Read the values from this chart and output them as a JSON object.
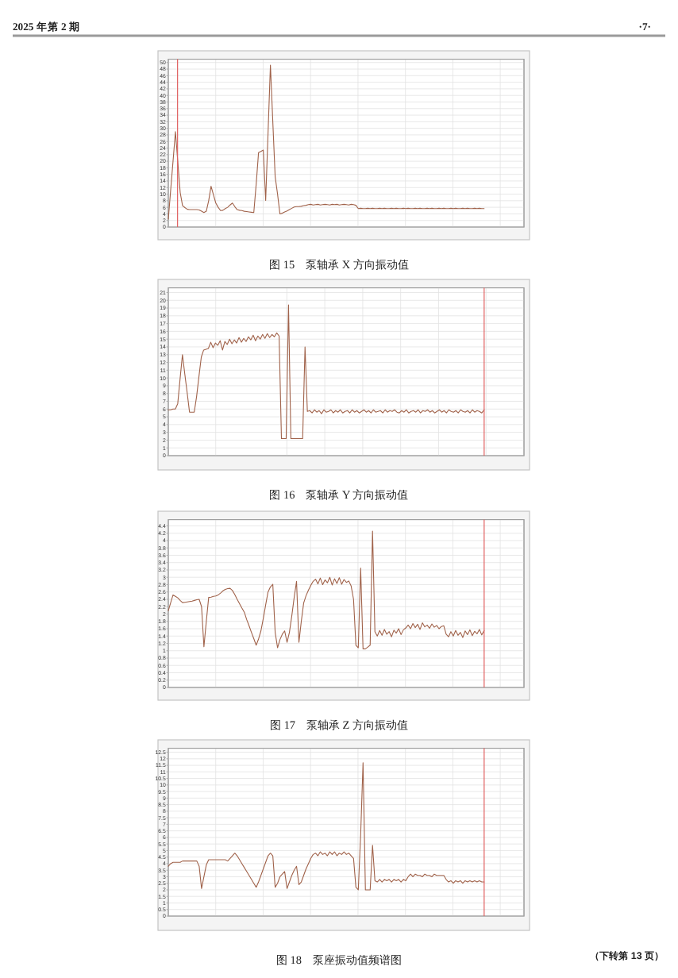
{
  "chart_data": [
    {
      "type": "line",
      "title": "图 15　泵轴承 X 方向振动值",
      "annotations": [
        "2025 年第 2 期",
        "·7·"
      ],
      "color": "#a0624a",
      "grid": true,
      "ylim": [
        0,
        51
      ],
      "yticks": [
        0,
        2,
        4,
        6,
        8,
        10,
        12,
        14,
        16,
        18,
        20,
        22,
        24,
        26,
        28,
        30,
        32,
        34,
        36,
        38,
        40,
        42,
        44,
        46,
        48,
        50
      ],
      "categories": [
        null,
        null,
        null,
        null,
        null,
        null,
        null,
        null,
        null,
        null,
        null,
        null,
        null,
        null,
        null,
        null,
        null,
        null,
        null,
        null,
        null,
        null,
        null,
        null,
        null,
        null,
        null,
        null,
        null,
        null,
        null,
        null,
        null,
        null,
        null,
        null,
        null,
        null,
        null,
        null,
        null,
        null,
        null,
        null,
        null,
        null,
        null,
        null,
        null,
        null,
        null,
        null,
        null,
        null,
        null,
        null,
        null,
        null,
        null,
        null,
        null,
        null,
        null,
        null,
        null,
        null,
        null,
        null,
        null,
        null,
        null,
        null,
        null,
        null,
        null,
        null,
        null,
        null,
        null,
        null,
        null,
        null,
        null,
        null,
        null,
        null,
        null,
        null,
        null,
        null,
        null,
        null,
        null,
        null,
        null,
        null,
        null,
        null,
        null,
        null,
        null,
        null,
        null,
        null,
        null,
        null,
        null,
        null,
        null,
        null,
        null,
        null,
        null,
        null,
        null,
        null,
        null,
        null,
        null,
        null,
        null,
        null,
        null,
        null,
        null,
        null,
        null,
        null,
        null,
        null,
        null,
        null,
        null,
        null
      ],
      "values": [
        2.4,
        11.3,
        20.1,
        29.0,
        19.8,
        10.5,
        6.5,
        5.9,
        5.4,
        5.3,
        5.3,
        5.3,
        5.3,
        5.2,
        4.8,
        4.4,
        4.8,
        8.0,
        12.4,
        9.8,
        7.3,
        6.0,
        5.0,
        5.1,
        5.6,
        6.0,
        6.7,
        7.3,
        6.2,
        5.3,
        5.1,
        5.0,
        4.8,
        4.7,
        4.6,
        4.5,
        4.4,
        13.0,
        22.6,
        23.0,
        23.4,
        8.1,
        28.6,
        49.2,
        32.0,
        15.3,
        10.0,
        4.0,
        4.2,
        4.6,
        4.9,
        5.3,
        5.7,
        6.1,
        6.2,
        6.2,
        6.3,
        6.5,
        6.6,
        6.8,
        6.9,
        6.7,
        6.8,
        6.9,
        6.7,
        6.8,
        6.9,
        6.8,
        6.7,
        6.9,
        6.8,
        6.9,
        6.7,
        6.8,
        6.9,
        6.8,
        6.7,
        6.9,
        6.8,
        6.6,
        5.6,
        5.7,
        5.6,
        5.6,
        5.7,
        5.6,
        5.7,
        5.6,
        5.6,
        5.7,
        5.6,
        5.7,
        5.6,
        5.6,
        5.7,
        5.6,
        5.7,
        5.6,
        5.6,
        5.7,
        5.6,
        5.7,
        5.6,
        5.6,
        5.7,
        5.6,
        5.7,
        5.6,
        5.6,
        5.7,
        5.6,
        5.7,
        5.6,
        5.6,
        5.7,
        5.6,
        5.7,
        5.6,
        5.6,
        5.7,
        5.6,
        5.7,
        5.6,
        5.6,
        5.7,
        5.6,
        5.7,
        5.6,
        5.6,
        5.7,
        5.6,
        5.7,
        5.6,
        5.6
      ]
    },
    {
      "type": "line",
      "title": "图 16　泵轴承 Y 方向振动值",
      "color": "#a0624a",
      "grid": true,
      "ylim": [
        0,
        21.6
      ],
      "yticks": [
        0,
        1,
        2,
        3,
        4,
        5,
        6,
        7,
        8,
        9,
        10,
        11,
        12,
        13,
        14,
        15,
        16,
        17,
        18,
        19,
        20,
        21
      ],
      "categories": [
        null,
        null,
        null,
        null,
        null,
        null,
        null,
        null,
        null,
        null,
        null,
        null,
        null,
        null,
        null,
        null,
        null,
        null,
        null,
        null,
        null,
        null,
        null,
        null,
        null,
        null,
        null,
        null,
        null,
        null,
        null,
        null,
        null,
        null,
        null,
        null,
        null,
        null,
        null,
        null,
        null,
        null,
        null,
        null,
        null,
        null,
        null,
        null,
        null,
        null,
        null,
        null,
        null,
        null,
        null,
        null,
        null,
        null,
        null,
        null,
        null,
        null,
        null,
        null,
        null,
        null,
        null,
        null,
        null,
        null,
        null,
        null,
        null,
        null,
        null,
        null,
        null,
        null,
        null,
        null,
        null,
        null,
        null,
        null,
        null,
        null,
        null,
        null,
        null,
        null,
        null,
        null,
        null,
        null,
        null,
        null,
        null,
        null,
        null,
        null,
        null,
        null,
        null,
        null,
        null,
        null,
        null,
        null,
        null,
        null,
        null,
        null,
        null,
        null,
        null,
        null,
        null,
        null,
        null,
        null,
        null,
        null,
        null,
        null,
        null,
        null,
        null,
        null,
        null,
        null,
        null,
        null,
        null,
        null,
        null
      ],
      "values": [
        5.9,
        5.9,
        6.0,
        6.0,
        6.7,
        9.9,
        13.0,
        10.5,
        8.1,
        5.6,
        5.6,
        5.6,
        7.6,
        10.2,
        12.7,
        13.6,
        13.7,
        13.8,
        14.6,
        13.9,
        14.5,
        14.2,
        14.8,
        13.6,
        14.7,
        14.3,
        15.0,
        14.4,
        14.9,
        14.5,
        15.2,
        14.6,
        15.1,
        14.7,
        15.3,
        14.9,
        15.5,
        14.8,
        15.4,
        15.0,
        15.6,
        15.1,
        15.7,
        15.2,
        15.6,
        15.3,
        15.8,
        15.4,
        2.2,
        2.2,
        2.2,
        19.4,
        2.2,
        2.2,
        2.2,
        2.2,
        2.2,
        2.2,
        14.0,
        5.7,
        5.8,
        5.5,
        5.9,
        5.6,
        5.8,
        5.4,
        5.9,
        5.6,
        5.7,
        5.9,
        5.5,
        5.8,
        5.6,
        5.9,
        5.5,
        5.7,
        5.8,
        5.5,
        5.9,
        5.6,
        5.8,
        5.5,
        5.7,
        5.9,
        5.6,
        5.8,
        5.5,
        5.9,
        5.6,
        5.7,
        5.8,
        5.5,
        5.9,
        5.6,
        5.8,
        5.7,
        5.9,
        5.6,
        5.5,
        5.8,
        5.6,
        5.9,
        5.5,
        5.7,
        5.8,
        5.6,
        5.9,
        5.5,
        5.8,
        5.7,
        5.9,
        5.6,
        5.8,
        5.5,
        5.7,
        5.9,
        5.6,
        5.8,
        5.5,
        5.9,
        5.7,
        5.6,
        5.8,
        5.5,
        5.9,
        5.7,
        5.6,
        5.8,
        5.5,
        5.9,
        5.6,
        5.8,
        5.7,
        5.5,
        5.9
      ]
    },
    {
      "type": "line",
      "title": "图 17　泵轴承 Z 方向振动值",
      "color": "#a0624a",
      "grid": true,
      "ylim": [
        0,
        4.57
      ],
      "yticks": [
        0,
        0.2,
        0.4,
        0.6,
        0.8,
        1,
        1.2,
        1.4,
        1.6,
        1.8,
        2,
        2.2,
        2.4,
        2.6,
        2.8,
        3,
        3.2,
        3.4,
        3.6,
        3.8,
        4,
        4.2,
        4.4
      ],
      "categories": [
        null,
        null,
        null,
        null,
        null,
        null,
        null,
        null,
        null,
        null,
        null,
        null,
        null,
        null,
        null,
        null,
        null,
        null,
        null,
        null,
        null,
        null,
        null,
        null,
        null,
        null,
        null,
        null,
        null,
        null,
        null,
        null,
        null,
        null,
        null,
        null,
        null,
        null,
        null,
        null,
        null,
        null,
        null,
        null,
        null,
        null,
        null,
        null,
        null,
        null,
        null,
        null,
        null,
        null,
        null,
        null,
        null,
        null,
        null,
        null,
        null,
        null,
        null,
        null,
        null,
        null,
        null,
        null,
        null,
        null,
        null,
        null,
        null,
        null,
        null,
        null,
        null,
        null,
        null,
        null,
        null,
        null,
        null,
        null,
        null,
        null,
        null,
        null,
        null,
        null,
        null,
        null,
        null,
        null,
        null,
        null,
        null,
        null,
        null,
        null,
        null,
        null,
        null,
        null,
        null,
        null,
        null,
        null,
        null,
        null,
        null,
        null,
        null,
        null,
        null,
        null,
        null,
        null,
        null,
        null,
        null,
        null,
        null,
        null,
        null,
        null,
        null,
        null,
        null,
        null,
        null,
        null,
        null,
        null
      ],
      "values": [
        2.09,
        2.31,
        2.52,
        2.48,
        2.44,
        2.37,
        2.31,
        2.32,
        2.33,
        2.34,
        2.35,
        2.37,
        2.39,
        2.4,
        2.2,
        1.11,
        1.8,
        2.45,
        2.46,
        2.48,
        2.49,
        2.52,
        2.57,
        2.63,
        2.67,
        2.69,
        2.7,
        2.64,
        2.53,
        2.4,
        2.28,
        2.16,
        2.05,
        1.85,
        1.68,
        1.5,
        1.33,
        1.15,
        1.32,
        1.54,
        1.88,
        2.25,
        2.6,
        2.74,
        2.81,
        1.5,
        1.08,
        1.3,
        1.45,
        1.54,
        1.23,
        1.5,
        1.95,
        2.45,
        2.89,
        1.23,
        1.8,
        2.3,
        2.5,
        2.65,
        2.78,
        2.89,
        2.95,
        2.82,
        2.98,
        2.8,
        2.93,
        2.85,
        3.0,
        2.79,
        2.96,
        2.83,
        2.99,
        2.81,
        2.94,
        2.86,
        2.9,
        2.76,
        2.4,
        1.15,
        1.08,
        3.25,
        1.05,
        1.05,
        1.1,
        1.15,
        4.26,
        1.52,
        1.4,
        1.55,
        1.42,
        1.58,
        1.45,
        1.52,
        1.38,
        1.56,
        1.48,
        1.6,
        1.44,
        1.57,
        1.62,
        1.7,
        1.6,
        1.74,
        1.63,
        1.72,
        1.58,
        1.76,
        1.65,
        1.7,
        1.61,
        1.73,
        1.64,
        1.69,
        1.6,
        1.66,
        1.68,
        1.45,
        1.38,
        1.52,
        1.4,
        1.55,
        1.42,
        1.5,
        1.36,
        1.54,
        1.44,
        1.57,
        1.41,
        1.53,
        1.46,
        1.58,
        1.43,
        1.55
      ]
    },
    {
      "type": "line",
      "title": "图 18　泵座振动值频谱图",
      "annotations": [
        "（下转第 13 页）"
      ],
      "color": "#a0624a",
      "grid": true,
      "ylim": [
        0,
        12.8
      ],
      "yticks": [
        0,
        0.5,
        1,
        1.5,
        2,
        2.5,
        3,
        3.5,
        4,
        4.5,
        5,
        5.5,
        6,
        6.5,
        7,
        7.5,
        8,
        8.5,
        9,
        9.5,
        10,
        10.5,
        11,
        11.5,
        12,
        12.5
      ],
      "categories": [
        null,
        null,
        null,
        null,
        null,
        null,
        null,
        null,
        null,
        null,
        null,
        null,
        null,
        null,
        null,
        null,
        null,
        null,
        null,
        null,
        null,
        null,
        null,
        null,
        null,
        null,
        null,
        null,
        null,
        null,
        null,
        null,
        null,
        null,
        null,
        null,
        null,
        null,
        null,
        null,
        null,
        null,
        null,
        null,
        null,
        null,
        null,
        null,
        null,
        null,
        null,
        null,
        null,
        null,
        null,
        null,
        null,
        null,
        null,
        null,
        null,
        null,
        null,
        null,
        null,
        null,
        null,
        null,
        null,
        null,
        null,
        null,
        null,
        null,
        null,
        null,
        null,
        null,
        null,
        null,
        null,
        null,
        null,
        null,
        null,
        null,
        null,
        null,
        null,
        null,
        null,
        null,
        null,
        null,
        null,
        null,
        null,
        null,
        null,
        null,
        null,
        null,
        null,
        null,
        null,
        null,
        null,
        null,
        null,
        null,
        null,
        null,
        null,
        null,
        null,
        null,
        null,
        null,
        null,
        null,
        null,
        null,
        null,
        null,
        null,
        null,
        null,
        null,
        null,
        null,
        null,
        null,
        null,
        null
      ],
      "values": [
        3.8,
        4.0,
        4.1,
        4.1,
        4.1,
        4.1,
        4.2,
        4.2,
        4.2,
        4.2,
        4.2,
        4.2,
        4.2,
        3.8,
        2.1,
        3.0,
        3.9,
        4.3,
        4.3,
        4.3,
        4.3,
        4.3,
        4.3,
        4.3,
        4.3,
        4.2,
        4.4,
        4.6,
        4.8,
        4.6,
        4.3,
        4.0,
        3.7,
        3.4,
        3.1,
        2.8,
        2.5,
        2.2,
        2.6,
        3.1,
        3.6,
        4.1,
        4.6,
        4.8,
        4.6,
        2.2,
        2.5,
        3.0,
        3.2,
        3.4,
        2.1,
        2.6,
        3.1,
        3.5,
        3.8,
        2.4,
        2.6,
        3.1,
        3.6,
        4.0,
        4.4,
        4.7,
        4.8,
        4.6,
        4.9,
        4.7,
        4.8,
        4.6,
        4.9,
        4.7,
        4.9,
        4.6,
        4.8,
        4.7,
        4.9,
        4.7,
        4.8,
        4.6,
        4.4,
        2.2,
        2.0,
        6.2,
        11.7,
        2.0,
        2.0,
        2.0,
        5.4,
        2.7,
        2.6,
        2.8,
        2.6,
        2.8,
        2.7,
        2.8,
        2.6,
        2.8,
        2.7,
        2.8,
        2.6,
        2.8,
        2.7,
        3.0,
        3.2,
        3.0,
        3.2,
        3.1,
        3.1,
        3.0,
        3.2,
        3.1,
        3.1,
        3.0,
        3.2,
        3.1,
        3.1,
        3.1,
        3.1,
        2.8,
        2.6,
        2.7,
        2.5,
        2.7,
        2.6,
        2.7,
        2.5,
        2.7,
        2.6,
        2.7,
        2.6,
        2.7,
        2.6,
        2.7,
        2.6,
        2.6
      ]
    }
  ]
}
